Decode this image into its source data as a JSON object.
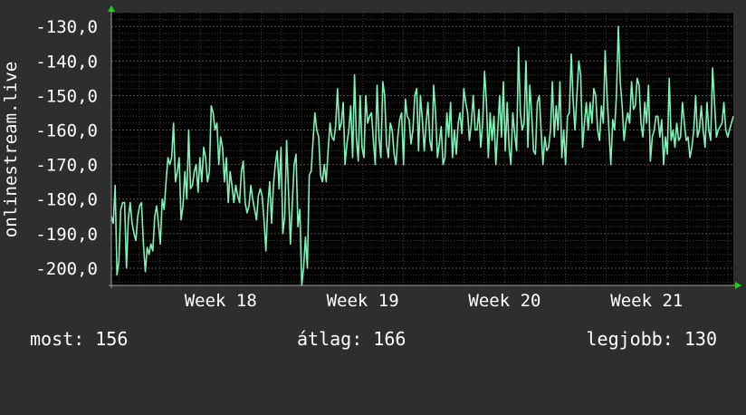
{
  "colors": {
    "background": "#2e2e2e",
    "plot_background": "#000000",
    "line": "#7ff2b8",
    "grid": "#3d3d3d",
    "vgrid": "#5a2b2b",
    "axis": "#9e9e9e",
    "arrow": "#1fd11f"
  },
  "footer": {
    "now_label": "most:",
    "now_value": "156",
    "avg_label": "átlag:",
    "avg_value": "166",
    "best_label": "legjobb:",
    "best_value": "130"
  },
  "chart_data": {
    "type": "line",
    "title": "",
    "xlabel": "",
    "ylabel": "onlinestream.live",
    "ylim": [
      -205,
      -126
    ],
    "xlim": [
      17.23,
      21.61
    ],
    "yticks": [
      -130,
      -140,
      -150,
      -160,
      -170,
      -180,
      -190,
      -200
    ],
    "ytick_labels": [
      "-130,0",
      "-140,0",
      "-150,0",
      "-160,0",
      "-170,0",
      "-180,0",
      "-190,0",
      "-200,0"
    ],
    "xticks": [
      18,
      19,
      20,
      21
    ],
    "xtick_labels": [
      "Week 18",
      "Week 19",
      "Week 20",
      "Week 21"
    ],
    "grid": true,
    "series": [
      {
        "values": [
          -185,
          -187,
          -176,
          -202,
          -198,
          -183,
          -181,
          -181,
          -200,
          -186,
          -181,
          -187,
          -190,
          -192,
          -185,
          -182,
          -181,
          -193,
          -201,
          -194,
          -196,
          -193,
          -195,
          -185,
          -182,
          -187,
          -193,
          -180,
          -183,
          -175,
          -168,
          -170,
          -168,
          -158,
          -175,
          -172,
          -168,
          -186,
          -182,
          -172,
          -180,
          -160,
          -177,
          -176,
          -172,
          -170,
          -178,
          -168,
          -175,
          -165,
          -168,
          -175,
          -172,
          -153,
          -155,
          -160,
          -158,
          -170,
          -162,
          -165,
          -175,
          -168,
          -181,
          -172,
          -176,
          -181,
          -176,
          -179,
          -181,
          -172,
          -169,
          -181,
          -184,
          -182,
          -176,
          -180,
          -183,
          -186,
          -179,
          -177,
          -179,
          -186,
          -195,
          -182,
          -175,
          -187,
          -176,
          -170,
          -166,
          -177,
          -165,
          -190,
          -185,
          -163,
          -178,
          -193,
          -181,
          -170,
          -167,
          -188,
          -183,
          -205,
          -200,
          -191,
          -200,
          -173,
          -172,
          -163,
          -155,
          -160,
          -162,
          -173,
          -175,
          -170,
          -175,
          -166,
          -158,
          -162,
          -163,
          -159,
          -148,
          -160,
          -158,
          -152,
          -170,
          -164,
          -160,
          -153,
          -168,
          -144,
          -162,
          -169,
          -150,
          -165,
          -168,
          -150,
          -158,
          -156,
          -155,
          -163,
          -170,
          -147,
          -162,
          -168,
          -146,
          -150,
          -164,
          -168,
          -158,
          -160,
          -167,
          -170,
          -162,
          -157,
          -155,
          -170,
          -151,
          -156,
          -157,
          -164,
          -160,
          -150,
          -148,
          -166,
          -150,
          -157,
          -166,
          -158,
          -152,
          -163,
          -166,
          -147,
          -155,
          -168,
          -164,
          -159,
          -170,
          -168,
          -155,
          -162,
          -152,
          -168,
          -160,
          -167,
          -158,
          -155,
          -161,
          -148,
          -152,
          -155,
          -163,
          -158,
          -150,
          -160,
          -160,
          -154,
          -165,
          -158,
          -143,
          -152,
          -168,
          -155,
          -163,
          -156,
          -170,
          -160,
          -150,
          -162,
          -146,
          -166,
          -152,
          -165,
          -170,
          -155,
          -161,
          -166,
          -136,
          -155,
          -160,
          -158,
          -140,
          -165,
          -147,
          -155,
          -166,
          -167,
          -152,
          -150,
          -160,
          -170,
          -162,
          -166,
          -165,
          -160,
          -146,
          -162,
          -153,
          -160,
          -146,
          -168,
          -160,
          -170,
          -156,
          -155,
          -138,
          -151,
          -160,
          -150,
          -140,
          -144,
          -165,
          -158,
          -152,
          -160,
          -152,
          -158,
          -148,
          -150,
          -160,
          -163,
          -153,
          -158,
          -137,
          -150,
          -160,
          -170,
          -157,
          -160,
          -150,
          -130,
          -146,
          -153,
          -163,
          -158,
          -155,
          -158,
          -146,
          -154,
          -153,
          -145,
          -147,
          -158,
          -162,
          -152,
          -158,
          -147,
          -169,
          -162,
          -160,
          -156,
          -156,
          -162,
          -157,
          -170,
          -162,
          -167,
          -145,
          -163,
          -160,
          -165,
          -158,
          -163,
          -162,
          -152,
          -158,
          -163,
          -162,
          -168,
          -165,
          -160,
          -150,
          -162,
          -160,
          -153,
          -160,
          -165,
          -152,
          -160,
          -163,
          -142,
          -152,
          -162,
          -160,
          -159,
          -158,
          -152,
          -160,
          -162,
          -160,
          -158,
          -156
        ]
      }
    ]
  }
}
